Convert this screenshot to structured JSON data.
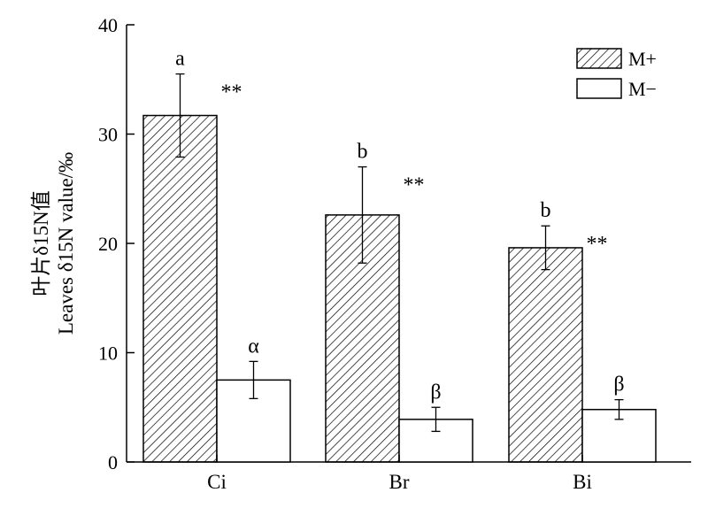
{
  "chart_data": {
    "type": "bar",
    "title": "",
    "xlabel": "",
    "ylabel_line1": "叶片δ15N值",
    "ylabel_line2": "Leaves δ15N value/‰",
    "ylim": [
      0,
      40
    ],
    "yticks": [
      "0",
      "10",
      "20",
      "30",
      "40"
    ],
    "categories": [
      "Ci",
      "Br",
      "Bi"
    ],
    "series": [
      {
        "name": "M+",
        "values": [
          31.7,
          22.6,
          19.6
        ],
        "errors": [
          3.8,
          4.4,
          2.0
        ],
        "letters": [
          "a",
          "b",
          "b"
        ],
        "significance": [
          "**",
          "**",
          "**"
        ],
        "fill": "hatch"
      },
      {
        "name": "M−",
        "values": [
          7.5,
          3.9,
          4.8
        ],
        "errors": [
          1.7,
          1.1,
          0.9
        ],
        "letters": [
          "α",
          "β",
          "β"
        ],
        "fill": "#ffffff"
      }
    ],
    "legend": {
      "placement": "top-right",
      "labels": [
        "M+",
        "M−"
      ]
    },
    "grid": false
  }
}
